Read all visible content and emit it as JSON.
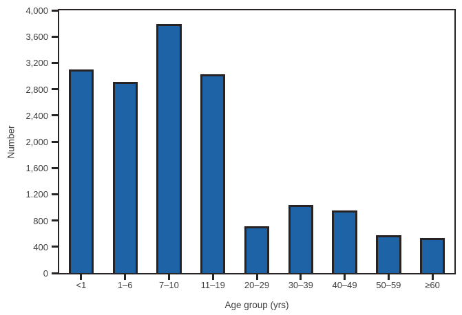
{
  "chart_data": {
    "type": "bar",
    "title": "",
    "xlabel": "Age group (yrs)",
    "ylabel": "Number",
    "categories": [
      "<1",
      "1–6",
      "7–10",
      "11–19",
      "20–29",
      "30–39",
      "40–49",
      "50–59",
      "≥60"
    ],
    "values": [
      3100,
      2910,
      3790,
      3030,
      710,
      1040,
      950,
      580,
      530
    ],
    "ylim": [
      0,
      4000
    ],
    "y_tick_values": [
      0,
      400,
      800,
      1200,
      1600,
      2000,
      2400,
      2800,
      3200,
      3600,
      4000
    ],
    "y_tick_labels": [
      "0",
      "400",
      "800",
      "1.200",
      "1,600",
      "2,000",
      "2,400",
      "2,800",
      "3,200",
      "3,600",
      "4,000"
    ],
    "grid": "off",
    "legend": "none",
    "bar_fill": "#1d63a5",
    "bar_stroke": "#272324",
    "axis_color": "#272324",
    "text_color": "#3d3d3d",
    "background": "#ffffff"
  }
}
